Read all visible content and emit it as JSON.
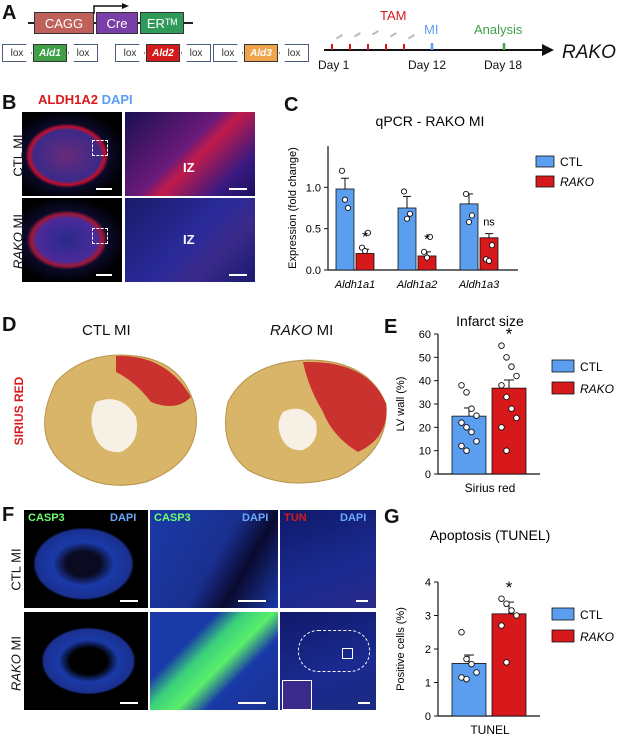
{
  "panels": {
    "A": "A",
    "B": "B",
    "C": "C",
    "D": "D",
    "E": "E",
    "F": "F",
    "G": "G"
  },
  "construct": {
    "cagg": "CAGG",
    "cre": "Cre",
    "er": "ERᵀᴹ",
    "lox": "lox",
    "ald1": "Ald1",
    "ald2": "Ald2",
    "ald3": "Ald3"
  },
  "timeline": {
    "tam": "TAM",
    "mi": "MI",
    "analysis": "Analysis",
    "day1": "Day 1",
    "day12": "Day 12",
    "day18": "Day 18",
    "model": "RAKO"
  },
  "panelB": {
    "stain1": "ALDH1A2",
    "stain2": "DAPI",
    "row1": "CTL MI",
    "row2_it": "RAKO",
    "row2": " MI",
    "iz": "IZ"
  },
  "panelD": {
    "ctl": "CTL MI",
    "rako_it": "RAKO",
    "rako": " MI",
    "side": "SIRIUS RED"
  },
  "panelF": {
    "casp3": "CASP3",
    "dapi": "DAPI",
    "tun": "TUN",
    "row1": "CTL MI",
    "row2_it": "RAKO",
    "row2": " MI"
  },
  "colors": {
    "ctl": "#5b9ef0",
    "rako": "#d8191c"
  },
  "chart_data": [
    {
      "type": "bar",
      "title": "qPCR - RAKO MI",
      "ylabel": "Expression (fold change)",
      "ylim": [
        0,
        1.5
      ],
      "yticks": [
        "0.0",
        "0.5",
        "1.0"
      ],
      "categories": [
        "Aldh1a1",
        "Aldh1a2",
        "Aldh1a3"
      ],
      "series": [
        {
          "name": "CTL",
          "values": [
            0.98,
            0.75,
            0.8
          ],
          "err": [
            0.13,
            0.14,
            0.12
          ],
          "points": [
            [
              1.2,
              0.85,
              0.75
            ],
            [
              0.95,
              0.62,
              0.68
            ],
            [
              0.92,
              0.58,
              0.66
            ]
          ]
        },
        {
          "name": "RAKO",
          "values": [
            0.2,
            0.17,
            0.39
          ],
          "err": [
            0.05,
            0.05,
            0.05
          ],
          "points": [
            [
              0.27,
              0.23,
              0.45
            ],
            [
              0.22,
              0.15,
              0.4
            ],
            [
              0.13,
              0.11,
              0.3
            ]
          ]
        }
      ],
      "annotations": [
        "*",
        "*",
        "ns"
      ]
    },
    {
      "type": "bar",
      "title": "Infarct size",
      "ylabel": "LV wall (%)",
      "xlabel": "Sirius red",
      "ylim": [
        0,
        60
      ],
      "yticks": [
        "0",
        "10",
        "20",
        "30",
        "40",
        "50",
        "60"
      ],
      "series": [
        {
          "name": "CTL",
          "value": 24.8,
          "err": 3.5,
          "points": [
            38,
            35,
            28,
            25,
            22,
            20,
            18,
            14,
            12,
            10
          ]
        },
        {
          "name": "RAKO",
          "value": 36.8,
          "err": 3.5,
          "points": [
            55,
            50,
            46,
            42,
            38,
            33,
            28,
            24,
            20,
            10
          ]
        }
      ],
      "annotation": "*"
    },
    {
      "type": "bar",
      "title": "Apoptosis (TUNEL)",
      "ylabel": "Positive cells (%)",
      "xlabel": "TUNEL",
      "ylim": [
        0,
        4
      ],
      "yticks": [
        "0",
        "1",
        "2",
        "3",
        "4"
      ],
      "series": [
        {
          "name": "CTL",
          "value": 1.57,
          "err": 0.25,
          "points": [
            2.5,
            1.7,
            1.55,
            1.3,
            1.15,
            1.1
          ]
        },
        {
          "name": "RAKO",
          "value": 3.05,
          "err": 0.35,
          "points": [
            3.5,
            3.35,
            3.15,
            3.0,
            2.7,
            1.6
          ]
        }
      ],
      "annotation": "*"
    }
  ]
}
